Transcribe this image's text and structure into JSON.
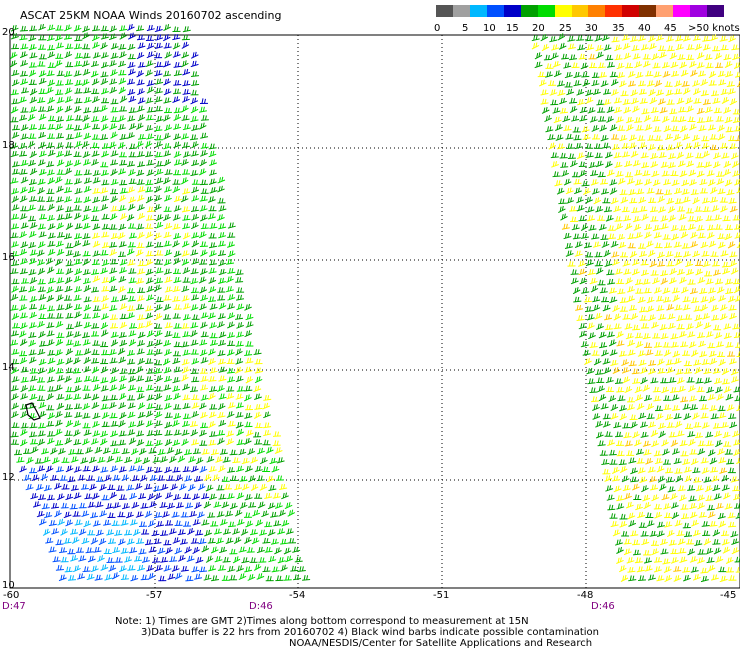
{
  "title": "ASCAT 25KM NOAA Winds 20160702 ascending",
  "colorbar": {
    "colors": [
      "#555555",
      "#a0a0a0",
      "#00b8ff",
      "#0050ff",
      "#0000c8",
      "#00a000",
      "#00dc00",
      "#ffff00",
      "#ffc800",
      "#ff8000",
      "#ff3000",
      "#d00000",
      "#803000",
      "#ffa070",
      "#ff00ff",
      "#a000e0",
      "#400080"
    ],
    "labels": [
      "0",
      "5",
      "10",
      "15",
      "20",
      "25",
      "30",
      "35",
      "40",
      "45",
      ">50 knots"
    ]
  },
  "map": {
    "lat_labels": [
      "20",
      "18",
      "16",
      "14",
      "12",
      "10"
    ],
    "lon_labels": [
      "-60",
      "-57",
      "-54",
      "-51",
      "-48",
      "-45"
    ],
    "time_labels": [
      "D:47",
      "D:46",
      "D:46"
    ]
  },
  "notes": [
    "Note: 1) Times are GMT 2)Times along bottom correspond to measurement at 15N",
    "3)Data buffer is 22 hrs from 20160702 4) Black wind barbs indicate possible contamination",
    "NOAA/NESDIS/Center for Satellite Applications and Research"
  ]
}
